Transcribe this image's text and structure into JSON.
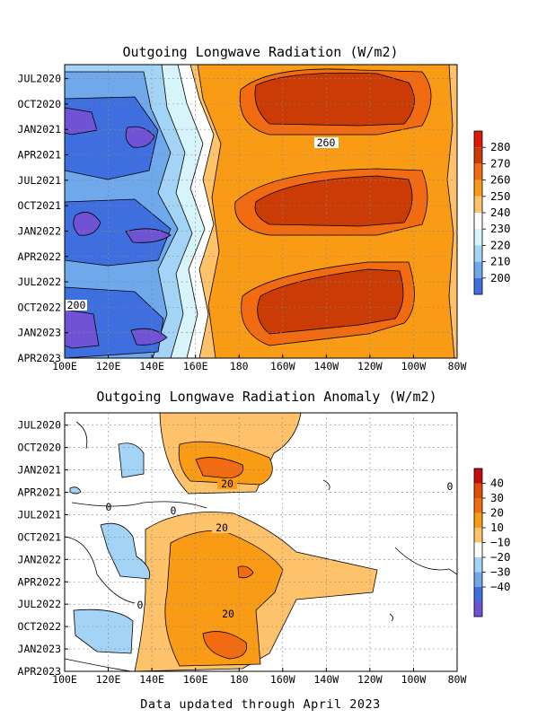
{
  "footer": "Data updated through April 2023",
  "colors": {
    "p280": "#ca3b06",
    "p270": "#f26b10",
    "p260": "#fa9b16",
    "p250": "#fdc26a",
    "p240": "#ffffff",
    "n240": "#d6f4fa",
    "n230": "#a3d4f6",
    "n220": "#6fa8eb",
    "n210": "#3f6fdf",
    "n200": "#7052d4",
    "below": "#6a4bd0"
  },
  "chart_data": [
    {
      "type": "heatmap",
      "title": "Outgoing Longwave Radiation (W/m2)",
      "x_ticks": [
        "100E",
        "120E",
        "140E",
        "160E",
        "180",
        "160W",
        "140W",
        "120W",
        "100W",
        "80W"
      ],
      "y_ticks": [
        "JUL2020",
        "OCT2020",
        "JAN2021",
        "APR2021",
        "JUL2021",
        "OCT2021",
        "JAN2022",
        "APR2022",
        "JUL2022",
        "OCT2022",
        "JAN2023",
        "APR2023"
      ],
      "colorbar": [
        "280",
        "270",
        "260",
        "250",
        "240",
        "230",
        "220",
        "210",
        "200"
      ],
      "contour_labels": [
        "260",
        "200"
      ]
    },
    {
      "type": "heatmap",
      "title": "Outgoing Longwave Radiation Anomaly (W/m2)",
      "x_ticks": [
        "100E",
        "120E",
        "140E",
        "160E",
        "180",
        "160W",
        "140W",
        "120W",
        "100W",
        "80W"
      ],
      "y_ticks": [
        "JUL2020",
        "OCT2020",
        "JAN2021",
        "APR2021",
        "JUL2021",
        "OCT2021",
        "JAN2022",
        "APR2022",
        "JUL2022",
        "OCT2022",
        "JAN2023",
        "APR2023"
      ],
      "colorbar": [
        "40",
        "30",
        "20",
        "10",
        "−10",
        "−20",
        "−30",
        "−40"
      ],
      "contour_labels": [
        "20",
        "20",
        "20",
        "0",
        "0",
        "0",
        "0"
      ]
    }
  ]
}
